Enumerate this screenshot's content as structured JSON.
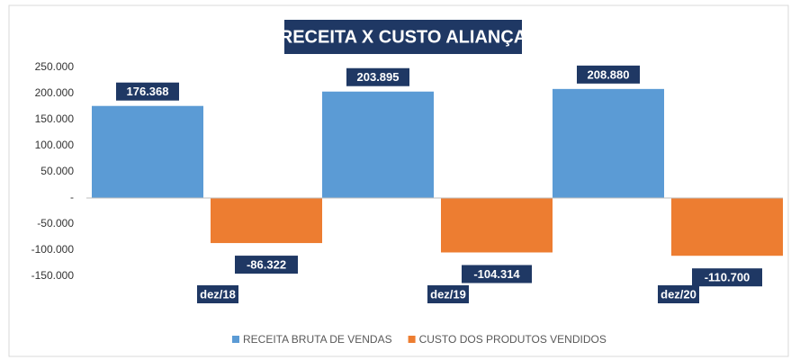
{
  "chart_data": {
    "type": "bar",
    "title": "RECEITA X CUSTO ALIANÇA",
    "categories": [
      "dez/18",
      "dez/19",
      "dez/20"
    ],
    "series": [
      {
        "name": "RECEITA BRUTA DE VENDAS",
        "color": "#5b9bd5",
        "values": [
          176368,
          203895,
          208880
        ],
        "value_labels": [
          "176.368",
          "203.895",
          "208.880"
        ]
      },
      {
        "name": "CUSTO DOS PRODUTOS VENDIDOS",
        "color": "#ed7d31",
        "values": [
          -86322,
          -104314,
          -110700
        ],
        "value_labels": [
          "-86.322",
          "-104.314",
          "-110.700"
        ]
      }
    ],
    "ylim": [
      -150000,
      250000
    ],
    "yticks": [
      {
        "value": 250000,
        "label": "250.000"
      },
      {
        "value": 200000,
        "label": "200.000"
      },
      {
        "value": 150000,
        "label": "150.000"
      },
      {
        "value": 100000,
        "label": "100.000"
      },
      {
        "value": 50000,
        "label": "50.000"
      },
      {
        "value": 0,
        "label": "-"
      },
      {
        "value": -50000,
        "label": "-50.000"
      },
      {
        "value": -100000,
        "label": "-100.000"
      },
      {
        "value": -150000,
        "label": "-150.000"
      }
    ],
    "grid": false,
    "legend": "bottom"
  }
}
